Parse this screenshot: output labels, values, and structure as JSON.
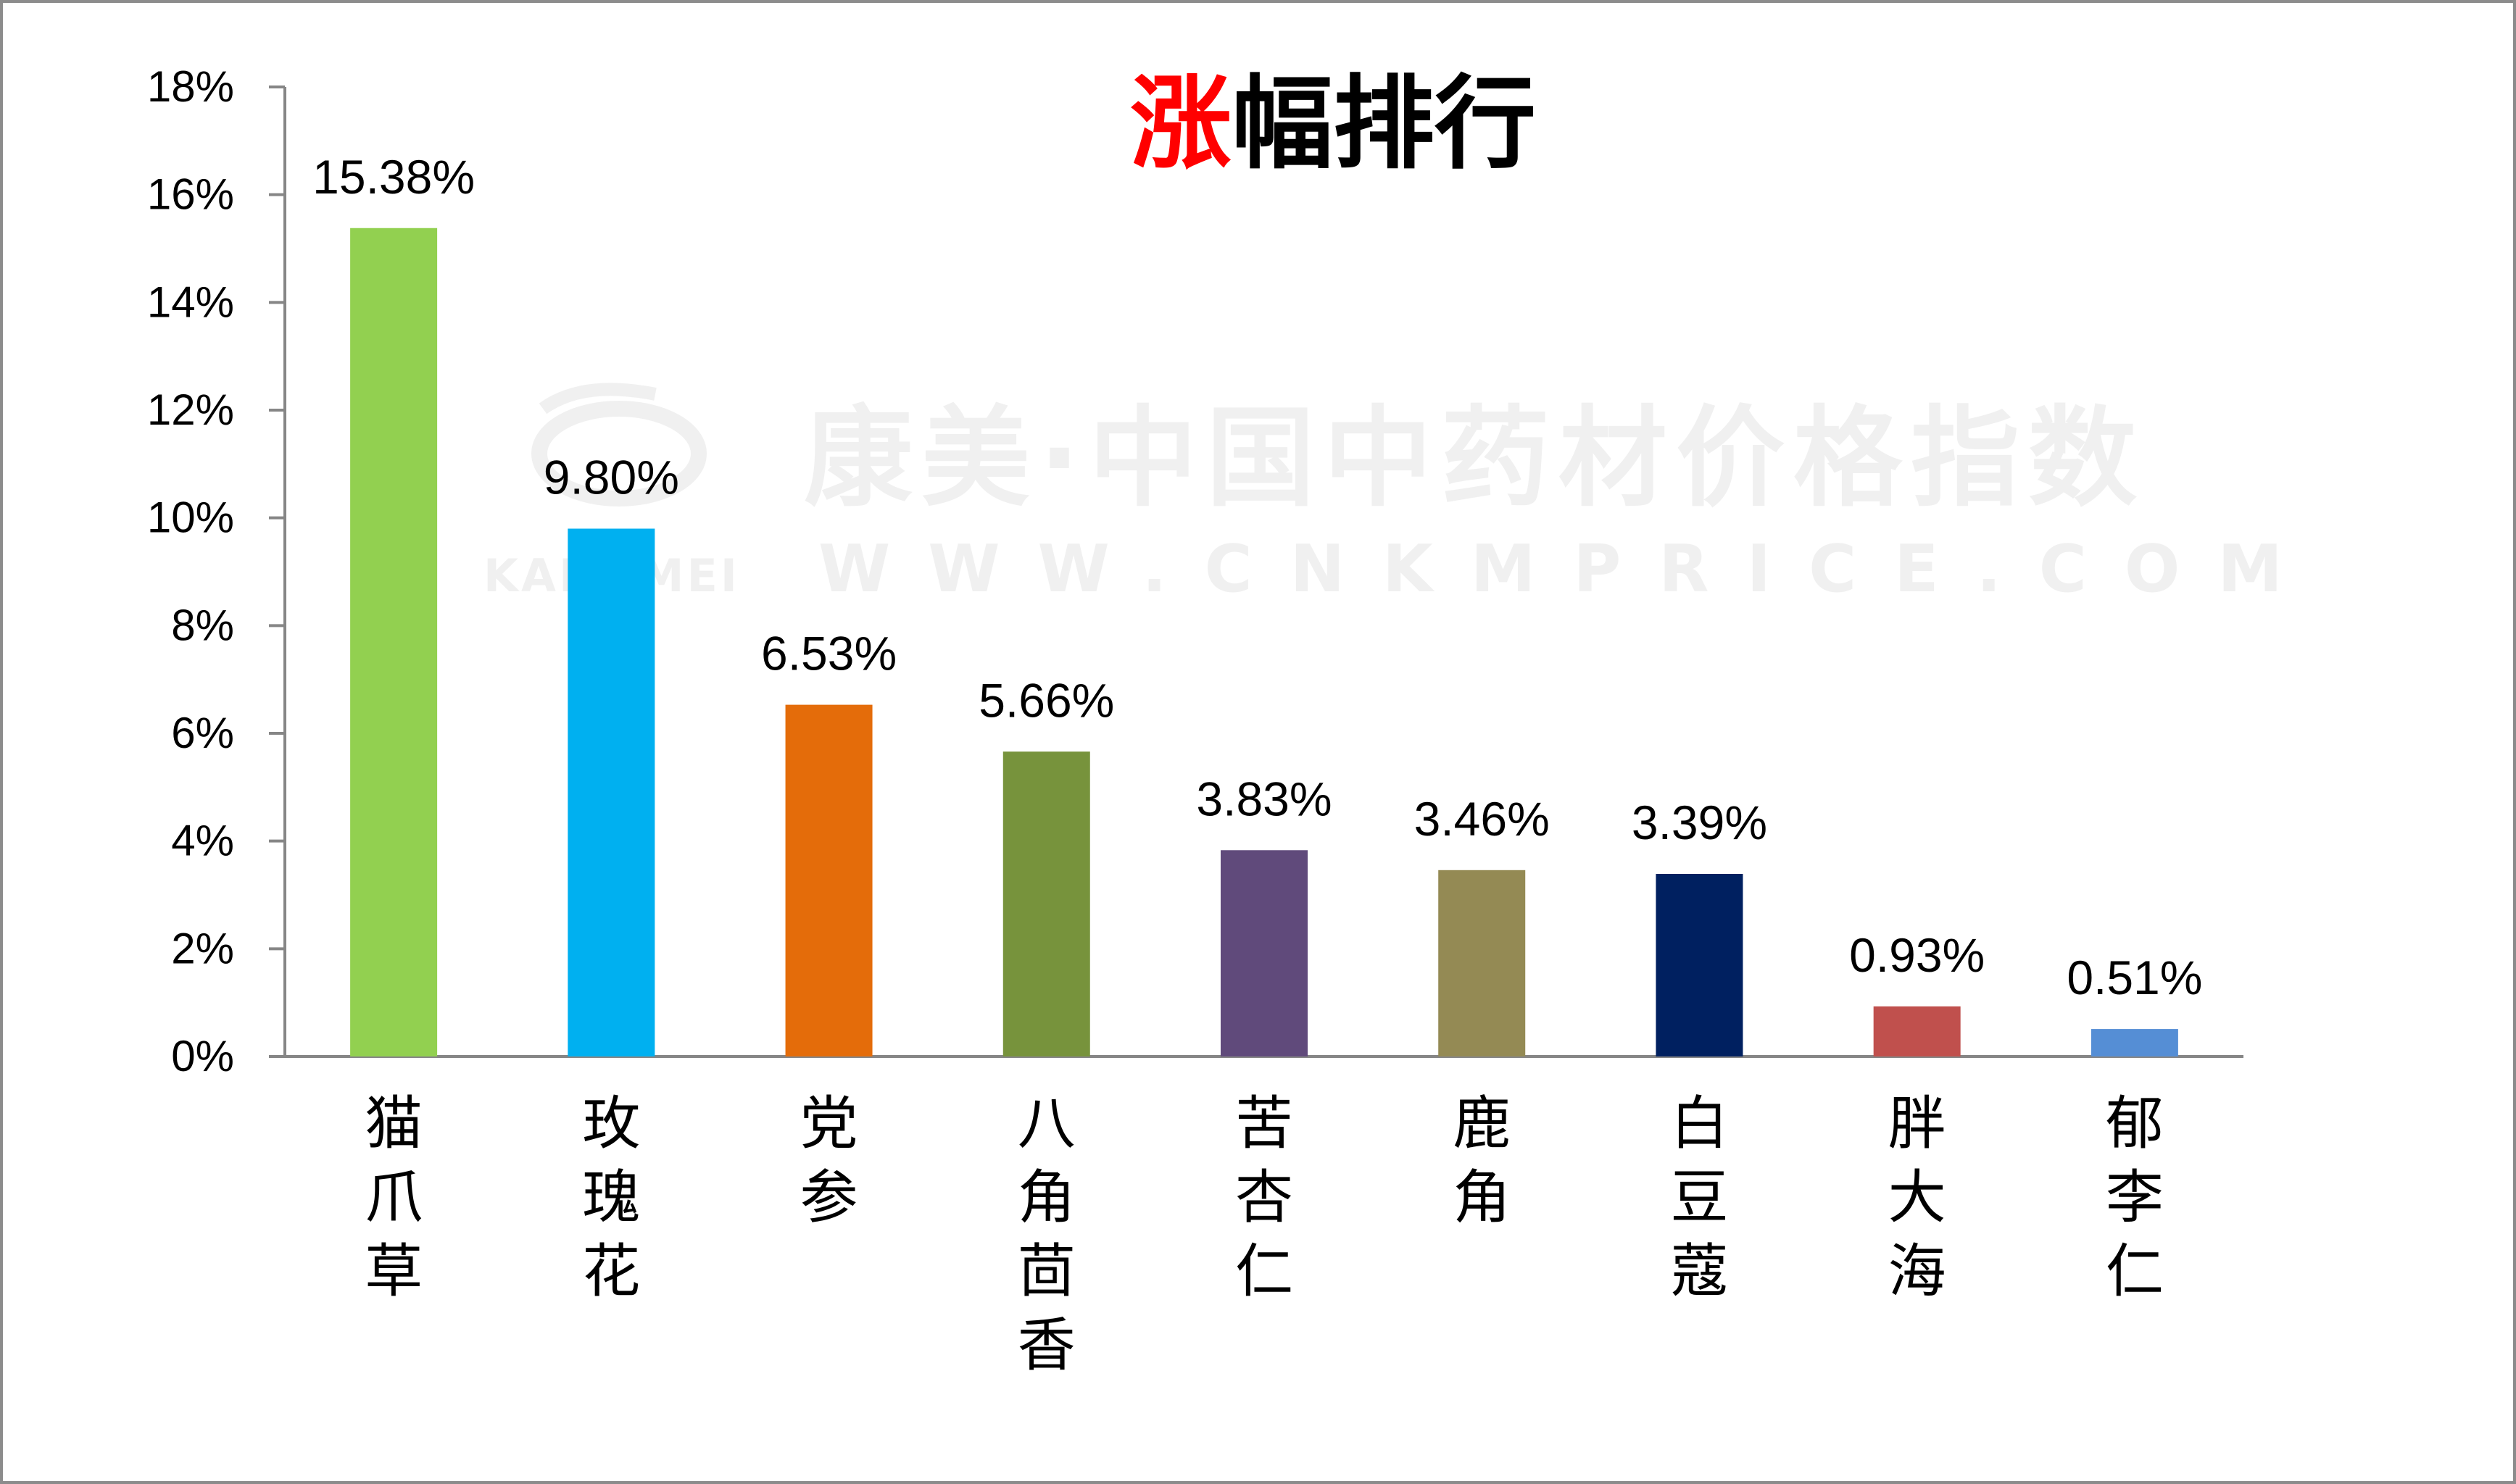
{
  "chart_data": {
    "type": "bar",
    "title_highlight": "涨",
    "title_rest": "幅排行",
    "categories": [
      "猫爪草",
      "玫瑰花",
      "党参",
      "八角茴香",
      "苦杏仁",
      "鹿角",
      "白豆蔻",
      "胖大海",
      "郁李仁"
    ],
    "values": [
      15.38,
      9.8,
      6.53,
      5.66,
      3.83,
      3.46,
      3.39,
      0.93,
      0.51
    ],
    "data_labels": [
      "15.38%",
      "9.80%",
      "6.53%",
      "5.66%",
      "3.83%",
      "3.46%",
      "3.39%",
      "0.93%",
      "0.51%"
    ],
    "colors": [
      "#92d050",
      "#00b0f0",
      "#e46c0a",
      "#77933c",
      "#604a7b",
      "#948a54",
      "#002060",
      "#c0504d",
      "#558ed5"
    ],
    "ylim": [
      0,
      18
    ],
    "yticks": [
      0,
      2,
      4,
      6,
      8,
      10,
      12,
      14,
      16,
      18
    ],
    "ytick_labels": [
      "0%",
      "2%",
      "4%",
      "6%",
      "8%",
      "10%",
      "12%",
      "14%",
      "16%",
      "18%"
    ],
    "xlabel": "",
    "ylabel": "",
    "grid": false,
    "legend": "none",
    "title_highlight_color": "#ff0000"
  },
  "watermark": {
    "line1": "康美·中国中药材价格指数",
    "brand": "KANGMEI",
    "line2": "WWW.CNKMPRICE.COM"
  }
}
